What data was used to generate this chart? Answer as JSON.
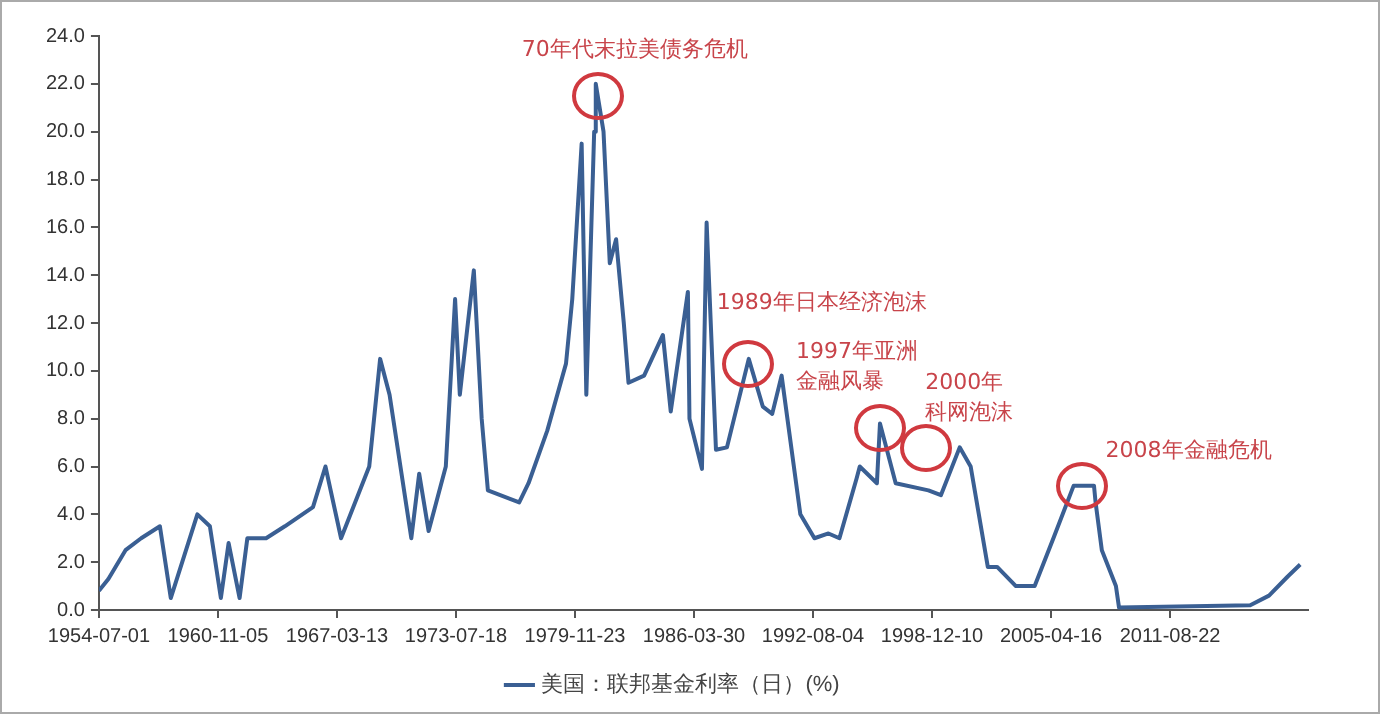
{
  "chart_data": {
    "type": "line",
    "x": [
      "1954-07-01",
      "1955-01",
      "1955-12",
      "1956-10",
      "1957-10",
      "1958-05",
      "1959-10",
      "1960-06",
      "1961-01",
      "1961-06",
      "1962-01",
      "1962-06",
      "1963-06",
      "1964-06",
      "1965-12",
      "1966-08",
      "1967-06",
      "1968-12",
      "1969-07",
      "1970-01",
      "1971-03",
      "1971-08",
      "1972-02",
      "1973-01",
      "1973-07",
      "1973-10",
      "1974-07",
      "1974-12",
      "1975-04",
      "1976-12",
      "1977-06",
      "1978-06",
      "1979-06",
      "1979-10",
      "1980-04",
      "1980-07",
      "1980-12",
      "1981-01",
      "1981-06",
      "1981-10",
      "1982-02",
      "1982-07",
      "1982-10",
      "1983-08",
      "1984-08",
      "1985-01",
      "1985-12",
      "1986-01",
      "1986-09",
      "1986-12",
      "1987-06",
      "1988-01",
      "1989-03",
      "1989-12",
      "1990-06",
      "1990-12",
      "1991-12",
      "1992-09",
      "1993-06",
      "1994-01",
      "1994-12",
      "1995-02",
      "1996-01",
      "1996-03",
      "1997-01",
      "1998-10",
      "1999-06",
      "2000-06",
      "2001-01",
      "2001-12",
      "2002-06",
      "2003-06",
      "2004-06",
      "2005-06",
      "2006-07",
      "2007-08",
      "2007-09",
      "2008-01",
      "2008-10",
      "2008-12",
      "2015-12",
      "2016-12",
      "2017-12",
      "2018-08"
    ],
    "series": [
      {
        "name": "美国：联邦基金利率（日）(%)",
        "color": "#3a5f93",
        "values": [
          0.8,
          1.3,
          2.5,
          3.0,
          3.5,
          0.5,
          4.0,
          3.5,
          0.5,
          2.8,
          0.5,
          3.0,
          3.0,
          3.5,
          4.3,
          6.0,
          3.0,
          6.0,
          10.5,
          9.0,
          3.0,
          5.7,
          3.3,
          6.0,
          13.0,
          9.0,
          14.2,
          8.0,
          5.0,
          4.5,
          5.3,
          7.5,
          10.3,
          13.0,
          19.5,
          9.0,
          20.0,
          22.0,
          20.0,
          14.5,
          15.5,
          12.0,
          9.5,
          9.8,
          11.5,
          8.3,
          13.3,
          8.0,
          5.9,
          16.2,
          6.7,
          6.8,
          10.5,
          8.5,
          8.2,
          9.8,
          4.0,
          3.0,
          3.2,
          3.0,
          5.5,
          6.0,
          5.3,
          7.8,
          5.3,
          5.0,
          4.8,
          6.8,
          6.0,
          1.8,
          1.8,
          1.0,
          1.0,
          3.0,
          5.2,
          5.2,
          4.5,
          2.5,
          1.0,
          0.1,
          0.2,
          0.6,
          1.4,
          1.9
        ]
      }
    ],
    "xlim": [
      "1954-07-01",
      "2018-12-31"
    ],
    "xticks": [
      "1954-07-01",
      "1960-11-05",
      "1967-03-13",
      "1973-07-18",
      "1979-11-23",
      "1986-03-30",
      "1992-08-04",
      "1998-12-10",
      "2005-04-16",
      "2011-08-22"
    ],
    "ylim": [
      0,
      24
    ],
    "yticks": [
      {
        "value": 0,
        "label": "0.0"
      },
      {
        "value": 2,
        "label": "2.0"
      },
      {
        "value": 4,
        "label": "4.0"
      },
      {
        "value": 6,
        "label": "6.0"
      },
      {
        "value": 8,
        "label": "8.0"
      },
      {
        "value": 10,
        "label": "10.0"
      },
      {
        "value": 12,
        "label": "12.0"
      },
      {
        "value": 14,
        "label": "14.0"
      },
      {
        "value": 16,
        "label": "16.0"
      },
      {
        "value": 18,
        "label": "18.0"
      },
      {
        "value": 20,
        "label": "20.0"
      },
      {
        "value": 22,
        "label": "22.0"
      },
      {
        "value": 24,
        "label": "24.0"
      }
    ],
    "annotations": [
      {
        "text": "70年代末拉美债务危机",
        "x": "1981-03",
        "y": 21.5
      },
      {
        "text": "1989年日本经济泡沫",
        "x": "1989-03",
        "y": 10.3
      },
      {
        "text": "1997年亚洲金融风暴",
        "x": "1996-03",
        "y": 7.6
      },
      {
        "text": "2000年科网泡沫",
        "x": "1998-08",
        "y": 6.8
      },
      {
        "text": "2008年金融危机",
        "x": "2006-12",
        "y": 5.2
      }
    ],
    "grid": false,
    "legend": "bottom",
    "marker": "none",
    "line_style": "solid"
  }
}
